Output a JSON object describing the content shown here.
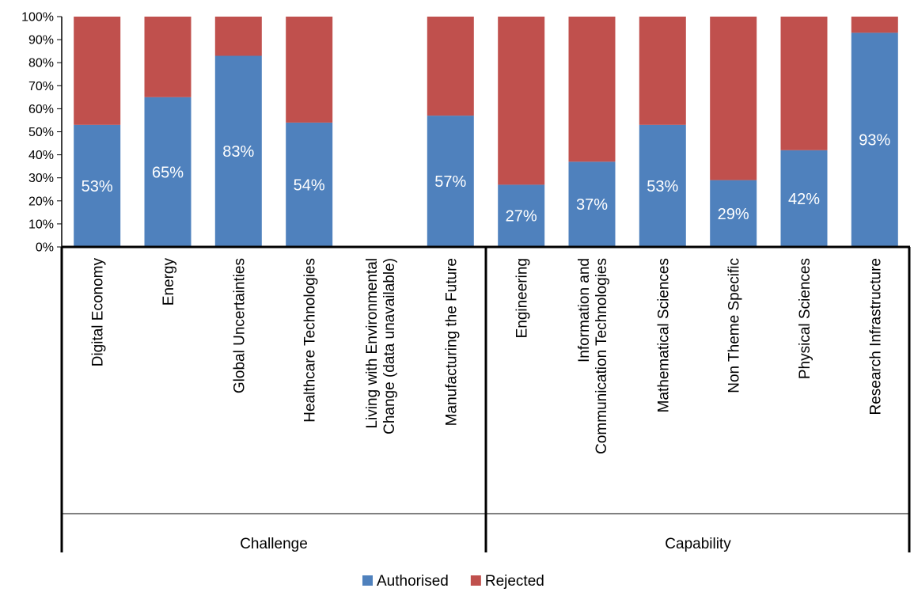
{
  "chart_data": {
    "type": "bar",
    "stacked": true,
    "percent": true,
    "ylim": [
      0,
      100
    ],
    "yticks": [
      "0%",
      "10%",
      "20%",
      "30%",
      "40%",
      "50%",
      "60%",
      "70%",
      "80%",
      "90%",
      "100%"
    ],
    "groups": [
      {
        "label": "Challenge",
        "count": 6
      },
      {
        "label": "Capability",
        "count": 6
      }
    ],
    "categories": [
      [
        "Digital Economy"
      ],
      [
        "Energy"
      ],
      [
        "Global Uncertainties"
      ],
      [
        "Healthcare Technologies"
      ],
      [
        "Living with Environmental",
        "Change (data unavailable)"
      ],
      [
        "Manufacturing the Future"
      ],
      [
        "Engineering"
      ],
      [
        "Information and",
        "Communication Technologies"
      ],
      [
        "Mathematical Sciences"
      ],
      [
        "Non Theme Specific"
      ],
      [
        "Physical Sciences"
      ],
      [
        "Research Infrastructure"
      ]
    ],
    "series": [
      {
        "name": "Authorised",
        "color": "#4f81bd",
        "values": [
          53,
          65,
          83,
          54,
          null,
          57,
          27,
          37,
          53,
          29,
          42,
          93
        ]
      },
      {
        "name": "Rejected",
        "color": "#c0504d",
        "values": [
          47,
          35,
          17,
          46,
          null,
          43,
          73,
          63,
          47,
          71,
          58,
          7
        ]
      }
    ],
    "data_labels": [
      "53%",
      "65%",
      "83%",
      "54%",
      "",
      "57%",
      "27%",
      "37%",
      "53%",
      "29%",
      "42%",
      "93%"
    ],
    "legend_position": "bottom",
    "grid": false
  }
}
